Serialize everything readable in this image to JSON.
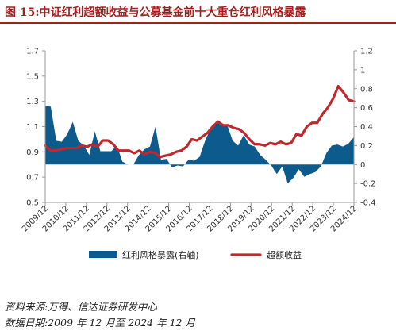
{
  "title": "图 15:中证红利超额收益与公募基金前十大重仓红利风格暴露",
  "source_note": "资料来源:万得、信达证券研发中心",
  "date_note": "数据日期:2009 年 12 月至 2024 年 12 月",
  "chart_data": {
    "type": "bar+line",
    "x_ticks": [
      "2009/12",
      "2010/12",
      "2011/12",
      "2012/12",
      "2013/12",
      "2014/12",
      "2015/12",
      "2016/12",
      "2017/12",
      "2018/12",
      "2019/12",
      "2020/12",
      "2021/12",
      "2022/12",
      "2023/12",
      "2024/12"
    ],
    "left_axis": {
      "ylim": [
        0.5,
        1.7
      ],
      "ticks": [
        "0.5",
        "0.7",
        "0.9",
        "1.1",
        "1.3",
        "1.5",
        "1.7"
      ]
    },
    "right_axis": {
      "ylim": [
        -0.4,
        1.2
      ],
      "ticks": [
        "-0.4",
        "-0.2",
        "0",
        "0.2",
        "0.4",
        "0.6",
        "0.8",
        "1",
        "1.2"
      ]
    },
    "legend_position": "bottom",
    "series": [
      {
        "name": "红利风格暴露(右轴)",
        "kind": "area",
        "axis": "right",
        "color": "#0d5a8c",
        "values": [
          0.62,
          0.61,
          0.25,
          0.24,
          0.32,
          0.45,
          0.25,
          0.2,
          0.1,
          0.35,
          0.14,
          0.14,
          0.14,
          0.2,
          0.03,
          0.0,
          0.0,
          0.1,
          0.16,
          0.19,
          0.4,
          0.05,
          0.06,
          -0.03,
          -0.01,
          -0.02,
          0.05,
          0.04,
          0.08,
          0.25,
          0.38,
          0.45,
          0.41,
          0.42,
          0.25,
          0.2,
          0.31,
          0.21,
          0.19,
          0.1,
          0.05,
          -0.01,
          -0.1,
          -0.02,
          -0.2,
          -0.14,
          -0.05,
          -0.13,
          -0.1,
          -0.08,
          -0.02,
          0.12,
          0.2,
          0.21,
          0.19,
          0.22,
          0.29
        ]
      },
      {
        "name": "超额收益",
        "kind": "line",
        "axis": "left",
        "color": "#c0282d",
        "values": [
          0.95,
          0.91,
          0.91,
          0.92,
          0.93,
          0.93,
          0.93,
          0.95,
          0.94,
          0.96,
          0.94,
          0.99,
          0.99,
          0.96,
          0.91,
          0.91,
          0.91,
          0.89,
          0.91,
          0.88,
          0.9,
          0.89,
          0.86,
          0.87,
          0.88,
          0.9,
          0.91,
          0.94,
          1.0,
          0.99,
          1.02,
          1.05,
          1.1,
          1.14,
          1.11,
          1.11,
          1.09,
          1.08,
          1.05,
          1.0,
          0.96,
          0.96,
          0.95,
          0.97,
          0.96,
          0.98,
          0.96,
          0.97,
          1.04,
          1.03,
          1.1,
          1.13,
          1.13,
          1.2,
          1.25,
          1.32,
          1.42,
          1.37,
          1.31,
          1.3
        ]
      }
    ]
  }
}
